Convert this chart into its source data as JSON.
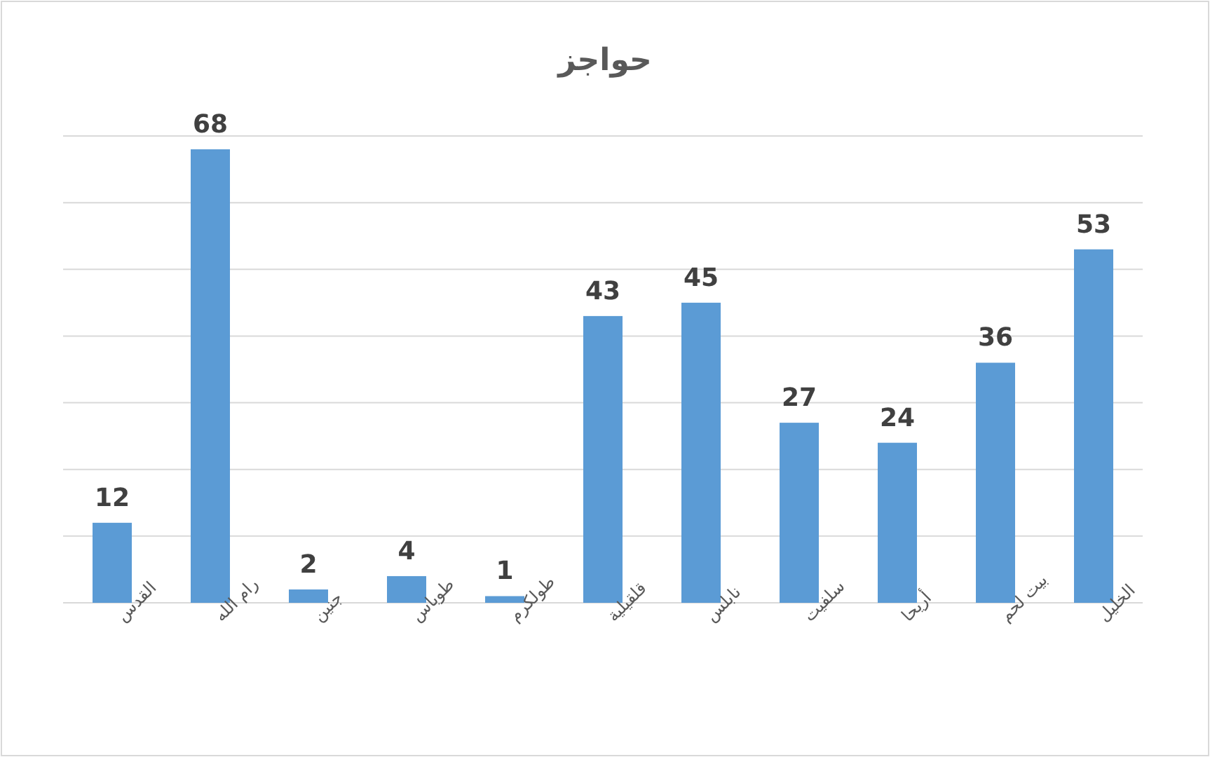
{
  "chart_data": {
    "type": "bar",
    "title": "حواجز",
    "categories": [
      "القدس",
      "رام الله",
      "جنين",
      "طوباس",
      "طولكرم",
      "قلقيلية",
      "نابلس",
      "سلفيت",
      "أريحا",
      "بيت لحم",
      "الخليل"
    ],
    "values": [
      12,
      68,
      2,
      4,
      1,
      43,
      45,
      27,
      24,
      36,
      53
    ],
    "color": "#5b9bd5",
    "data_labels": true,
    "ylim": [
      0,
      70
    ],
    "yticks": [
      {
        "value": 0,
        "label": null
      },
      {
        "value": 10,
        "label": null
      },
      {
        "value": 20,
        "label": null
      },
      {
        "value": 30,
        "label": null
      },
      {
        "value": 40,
        "label": null
      },
      {
        "value": 50,
        "label": null
      },
      {
        "value": 60,
        "label": null
      },
      {
        "value": 70,
        "label": null
      }
    ],
    "grid": "y"
  }
}
